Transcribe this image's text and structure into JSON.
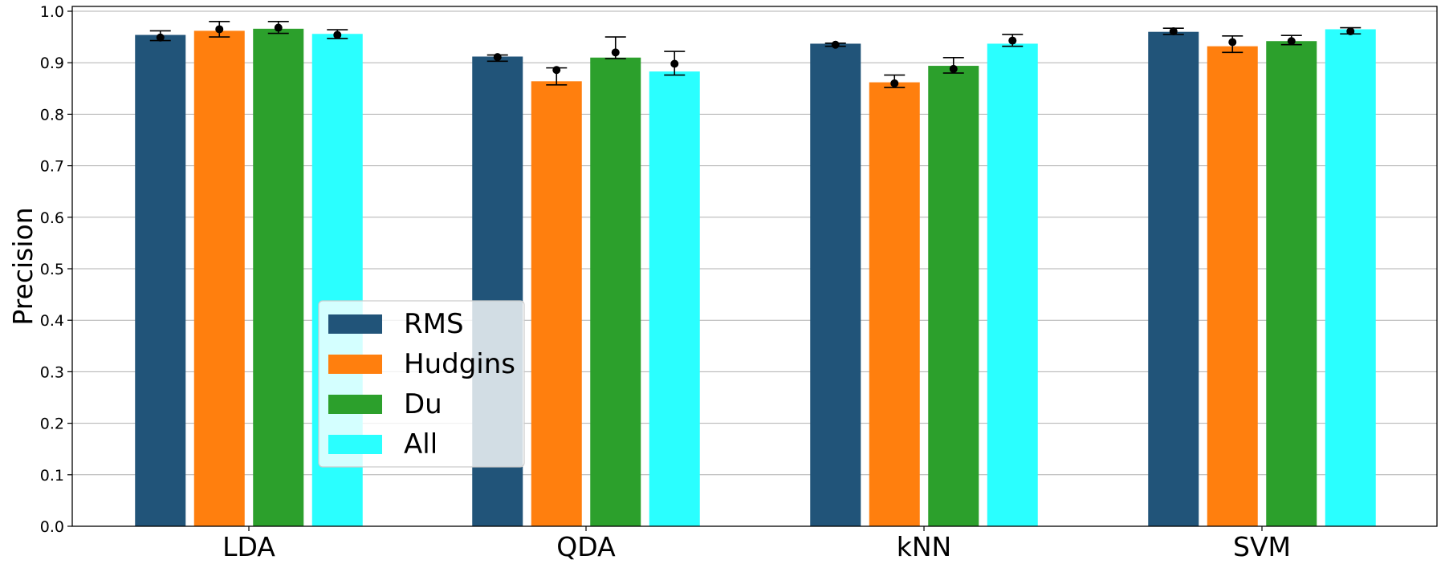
{
  "chart_data": {
    "type": "bar",
    "title": "",
    "xlabel": "",
    "ylabel": "Precision",
    "ylim": [
      0,
      1.0
    ],
    "yticks": [
      "0.0",
      "0.1",
      "0.2",
      "0.3",
      "0.4",
      "0.5",
      "0.6",
      "0.7",
      "0.8",
      "0.9",
      "1.0"
    ],
    "grid": true,
    "legend_position": "lower-left",
    "categories": [
      "LDA",
      "QDA",
      "kNN",
      "SVM"
    ],
    "series": [
      {
        "name": "RMS",
        "color": "#215479",
        "values": [
          0.954,
          0.912,
          0.937,
          0.96
        ],
        "points": [
          0.949,
          0.911,
          0.935,
          0.961
        ],
        "err_low": [
          0.943,
          0.903,
          0.932,
          0.955
        ],
        "err_high": [
          0.962,
          0.915,
          0.938,
          0.967
        ]
      },
      {
        "name": "Hudgins",
        "color": "#ff7f0e",
        "values": [
          0.962,
          0.864,
          0.862,
          0.932
        ],
        "points": [
          0.965,
          0.886,
          0.86,
          0.94
        ],
        "err_low": [
          0.95,
          0.857,
          0.852,
          0.92
        ],
        "err_high": [
          0.98,
          0.89,
          0.876,
          0.952
        ]
      },
      {
        "name": "Du",
        "color": "#2ca02c",
        "values": [
          0.966,
          0.91,
          0.894,
          0.942
        ],
        "points": [
          0.968,
          0.92,
          0.888,
          0.942
        ],
        "err_low": [
          0.957,
          0.908,
          0.88,
          0.935
        ],
        "err_high": [
          0.98,
          0.95,
          0.91,
          0.953
        ]
      },
      {
        "name": "All",
        "color": "#2affff",
        "values": [
          0.956,
          0.883,
          0.937,
          0.965
        ],
        "points": [
          0.954,
          0.898,
          0.943,
          0.961
        ],
        "err_low": [
          0.947,
          0.876,
          0.932,
          0.956
        ],
        "err_high": [
          0.964,
          0.922,
          0.955,
          0.968
        ]
      }
    ]
  }
}
